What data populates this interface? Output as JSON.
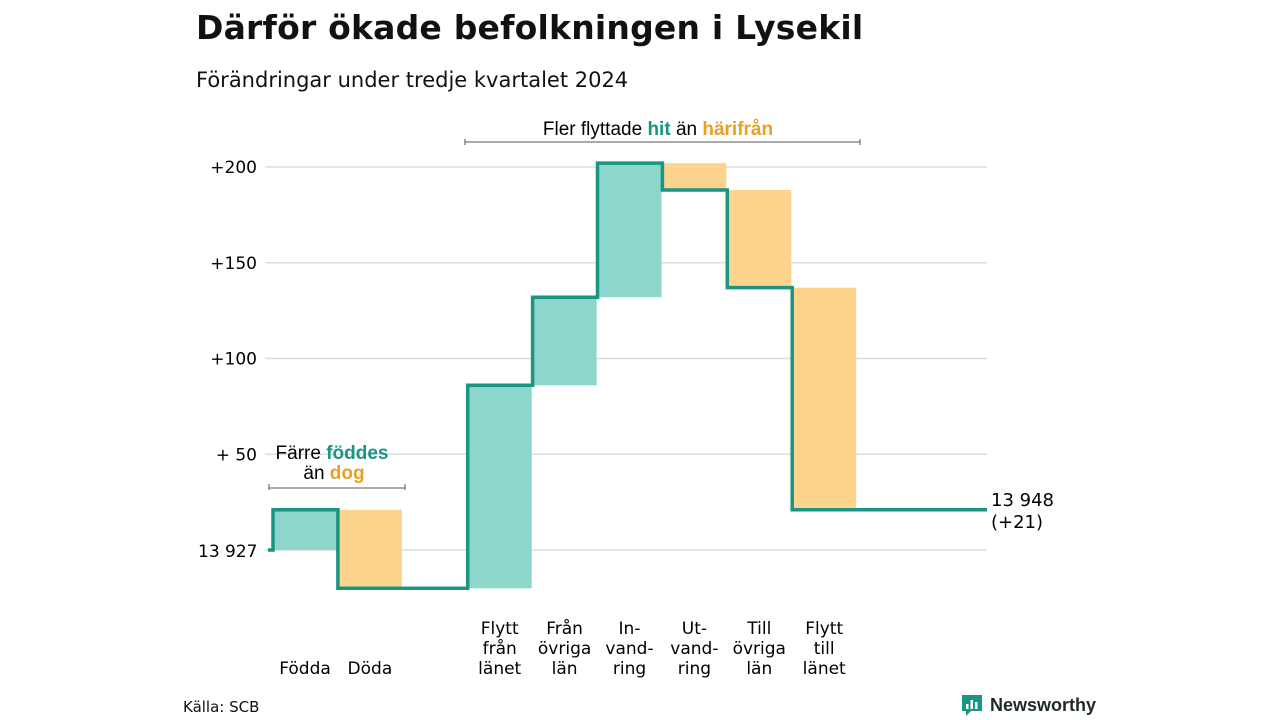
{
  "title": "Därför ökade befolkningen i Lysekil",
  "subtitle": "Förändringar under tredje kvartalet 2024",
  "source": "Källa: SCB",
  "brand": {
    "name": "Newsworthy",
    "icon": "bar-chart-speech-icon"
  },
  "colors": {
    "increase": "#8dd6cb",
    "decrease": "#fdd48e",
    "line": "#1a9483",
    "grid": "#dddddd",
    "teal_text": "#1a9483",
    "orange_text": "#e9a023"
  },
  "annotations": {
    "births_deaths": {
      "line1": "Färre",
      "teal": "föddes",
      "line2": "än",
      "orange": "dog"
    },
    "migration": {
      "prefix": "Fler flyttade",
      "teal": "hit",
      "middle": "än",
      "orange": "härifrån"
    }
  },
  "chart_data": {
    "type": "waterfall",
    "start": {
      "value": 13927,
      "label": "13 927"
    },
    "end": {
      "value": 13948,
      "label": "13 948",
      "change_label": "(+21)"
    },
    "y_axis": {
      "ticks": [
        {
          "value": 50,
          "label": "+ 50"
        },
        {
          "value": 100,
          "label": "+100"
        },
        {
          "value": 150,
          "label": "+150"
        },
        {
          "value": 200,
          "label": "+200"
        }
      ],
      "ylim": [
        -20,
        210
      ]
    },
    "grid": true,
    "steps": [
      {
        "label": [
          "Födda"
        ],
        "change": 21
      },
      {
        "label": [
          "Döda"
        ],
        "change": -41
      },
      {
        "label": [
          "Flytt",
          "från",
          "länet"
        ],
        "change": 106
      },
      {
        "label": [
          "Från",
          "övriga",
          "län"
        ],
        "change": 46
      },
      {
        "label": [
          "In-",
          "vand-",
          "ring"
        ],
        "change": 70
      },
      {
        "label": [
          "Ut-",
          "vand-",
          "ring"
        ],
        "change": -14
      },
      {
        "label": [
          "Till",
          "övriga",
          "län"
        ],
        "change": -51
      },
      {
        "label": [
          "Flytt",
          "till",
          "länet"
        ],
        "change": -116
      }
    ]
  }
}
